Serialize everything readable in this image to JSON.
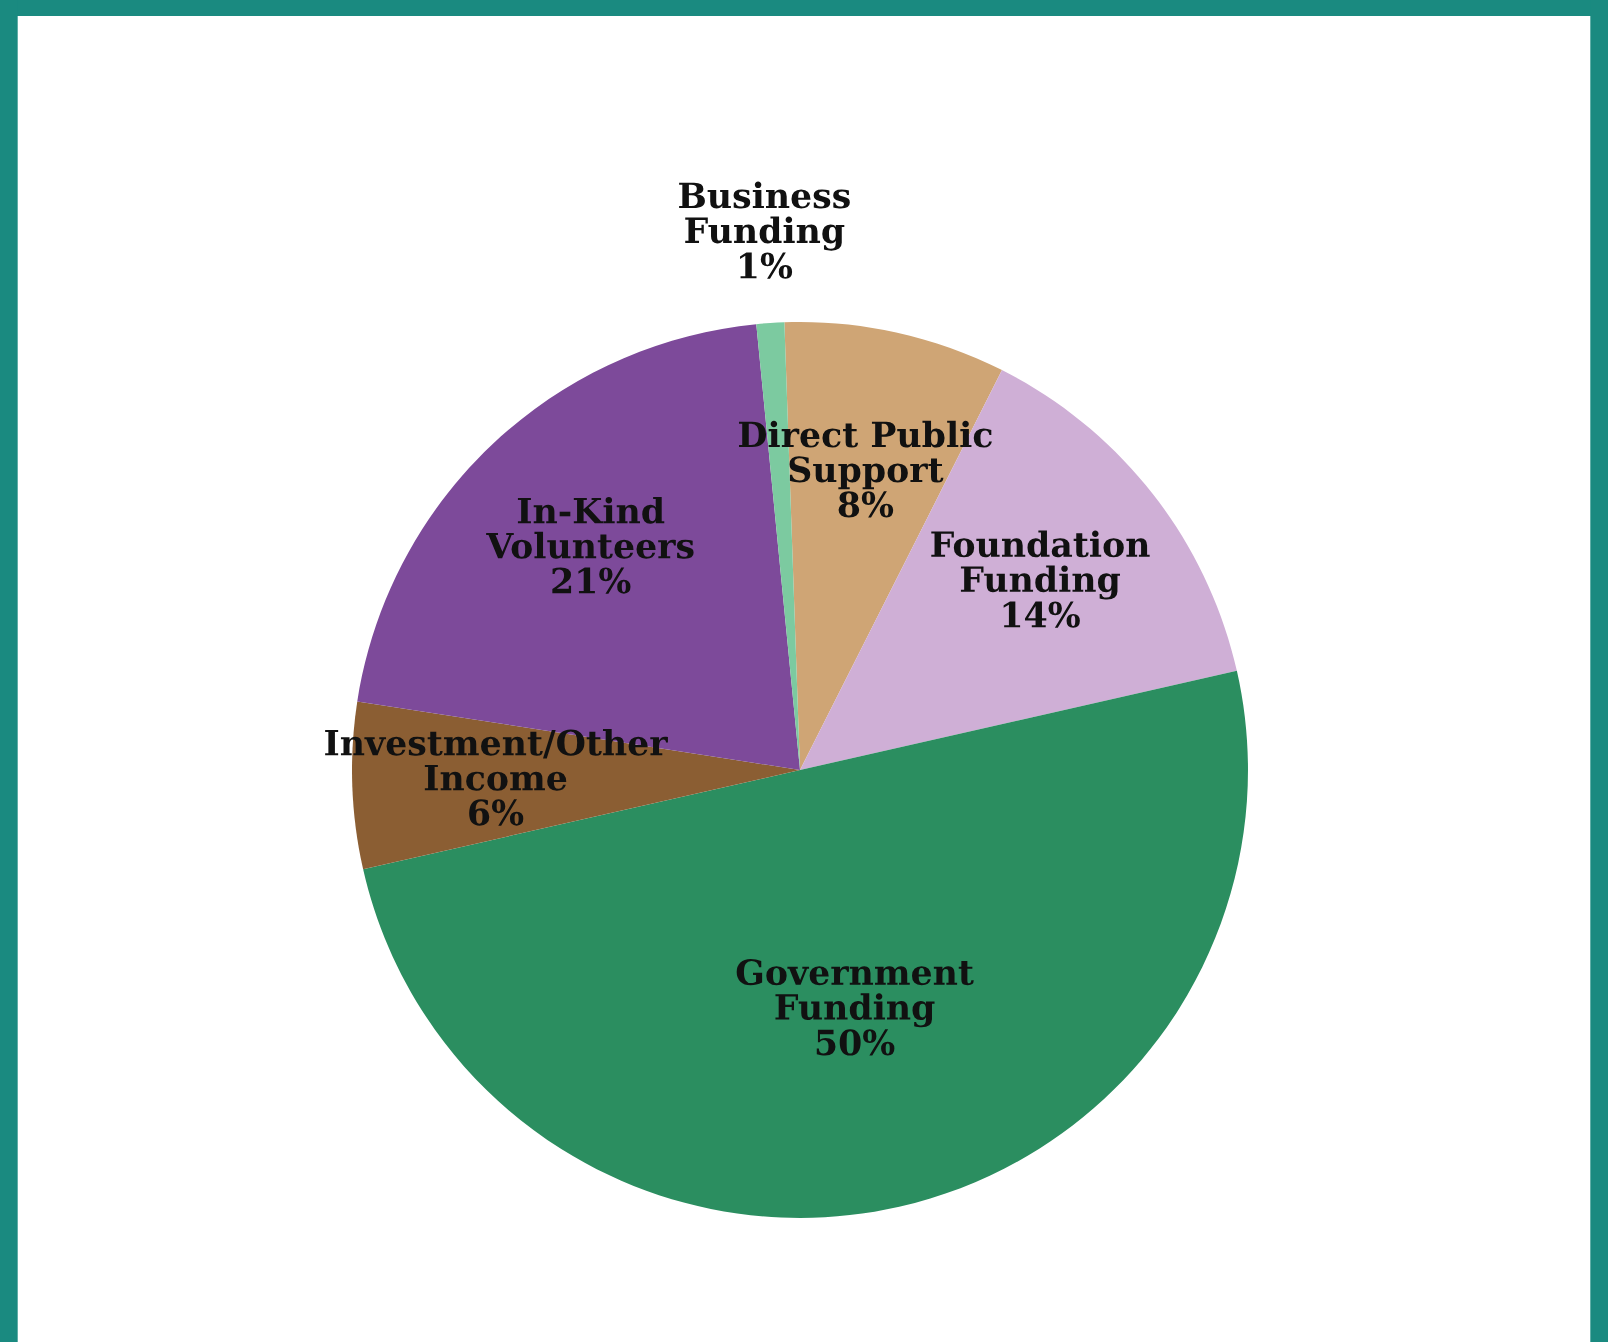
{
  "chart_data": {
    "type": "pie",
    "categories": [
      "Direct Public\nSupport",
      "Foundation\nFunding",
      "Government\nFunding",
      "Investment/Other\nIncome",
      "In-Kind\nVolunteers",
      "Business\nFunding"
    ],
    "values": [
      8,
      14,
      50,
      6,
      21,
      1
    ],
    "value_labels": [
      "8%",
      "14%",
      "50%",
      "6%",
      "21%",
      "1%"
    ],
    "colors": [
      "#cfa575",
      "#cfafd6",
      "#2b8e60",
      "#8b5e33",
      "#7d4a9a",
      "#7ccaa0"
    ]
  }
}
